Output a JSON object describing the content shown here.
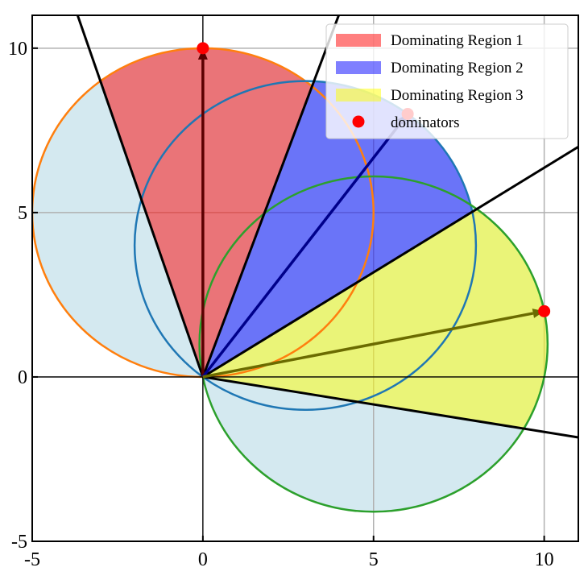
{
  "chart_data": {
    "type": "geometry",
    "xlim": [
      -5,
      11
    ],
    "ylim": [
      -5,
      11
    ],
    "xticks": [
      -5,
      0,
      5,
      10
    ],
    "yticks": [
      -5,
      0,
      5,
      10
    ],
    "grid": true,
    "legend": "upper right",
    "circle_fill": "#d4e9f0",
    "boundary_rays": {
      "x": [
        -3.67,
        3.98,
        11,
        11
      ],
      "y": [
        11,
        11,
        7.0,
        -1.84
      ]
    },
    "regions": [
      {
        "name": "Dominating Region 1",
        "color": "#ff0000",
        "edge_color": "#ff7f0e",
        "cx": 0,
        "cy": 5,
        "r": 5
      },
      {
        "name": "Dominating Region 2",
        "color": "#0000ff",
        "edge_color": "#1f77b4",
        "cx": 3,
        "cy": 4,
        "r": 5
      },
      {
        "name": "Dominating Region 3",
        "color": "#ffff00",
        "edge_color": "#2ca02c",
        "cx": 5,
        "cy": 1,
        "r": 5.1
      }
    ],
    "series": [
      {
        "name": "dominators",
        "color": "#ff0000",
        "arrow_colors": [
          "#5a0000",
          "#00008b",
          "#6b6b00"
        ],
        "x": [
          0,
          6,
          10
        ],
        "y": [
          10,
          8,
          2
        ]
      }
    ]
  }
}
